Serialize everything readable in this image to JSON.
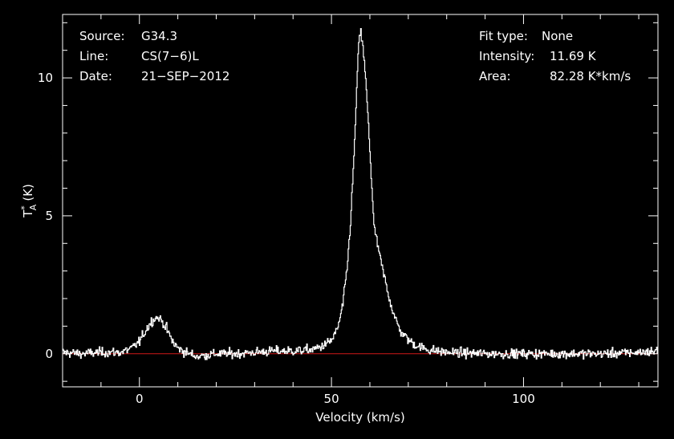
{
  "info": {
    "source_label": "Source:",
    "source_value": "G34.3",
    "line_label": "Line:",
    "line_value": "CS(7−6)L",
    "date_label": "Date:",
    "date_value": "21−SEP−2012",
    "fit_label": "Fit type:",
    "fit_value": "None",
    "intensity_label": "Intensity:",
    "intensity_value": "11.69 K",
    "area_label": "Area:",
    "area_value": "82.28 K*km/s"
  },
  "chart_data": {
    "type": "line",
    "xlabel": "Velocity (km/s)",
    "ylabel": "T*A (K)",
    "xlim": [
      -20,
      135
    ],
    "ylim": [
      -1.2,
      12.3
    ],
    "x_ticks": [
      0,
      50,
      100
    ],
    "y_ticks": [
      0,
      5,
      10
    ],
    "grid": false,
    "colors": {
      "background": "#000000",
      "spectrum": "#ffffff",
      "baseline": "#d01818",
      "axes": "#ffffff"
    },
    "series": [
      {
        "values_description_x": [
          -20,
          -15,
          -10,
          -5,
          -2,
          0,
          1,
          2,
          3,
          4,
          5,
          6,
          7,
          8,
          9,
          10,
          12,
          15,
          20,
          25,
          30,
          35,
          40,
          45,
          48,
          50,
          51,
          52,
          53,
          54,
          55,
          56,
          56.5,
          57,
          57.5,
          58,
          58.5,
          59,
          60,
          61,
          62,
          63,
          64,
          65,
          66,
          67,
          68,
          70,
          72,
          75,
          80,
          90,
          100,
          110,
          120,
          130,
          135
        ],
        "x": [
          -20,
          -15,
          -10,
          -5,
          -2,
          0,
          1,
          2,
          3,
          4,
          5,
          6,
          7,
          8,
          9,
          10,
          12,
          15,
          20,
          25,
          30,
          35,
          40,
          45,
          48,
          50,
          51,
          52,
          53,
          54,
          55,
          56,
          56.5,
          57,
          57.5,
          58,
          58.5,
          59,
          60,
          61,
          62,
          63,
          64,
          65,
          66,
          67,
          68,
          70,
          72,
          75,
          80,
          90,
          100,
          110,
          120,
          130,
          135
        ],
        "values": [
          0.05,
          0.0,
          0.05,
          0.05,
          0.2,
          0.45,
          0.7,
          0.95,
          1.15,
          1.3,
          1.3,
          1.15,
          0.9,
          0.6,
          0.35,
          0.2,
          0.05,
          -0.1,
          0.0,
          0.0,
          0.05,
          0.1,
          0.1,
          0.15,
          0.3,
          0.5,
          0.75,
          1.15,
          1.9,
          3.1,
          5.0,
          7.8,
          9.6,
          11.2,
          11.69,
          11.3,
          10.5,
          9.6,
          7.2,
          4.6,
          3.9,
          3.2,
          2.6,
          2.0,
          1.5,
          1.1,
          0.8,
          0.5,
          0.3,
          0.15,
          0.05,
          0.0,
          0.0,
          0.0,
          0.0,
          0.05,
          0.1
        ],
        "noise_rms": 0.12
      }
    ]
  }
}
